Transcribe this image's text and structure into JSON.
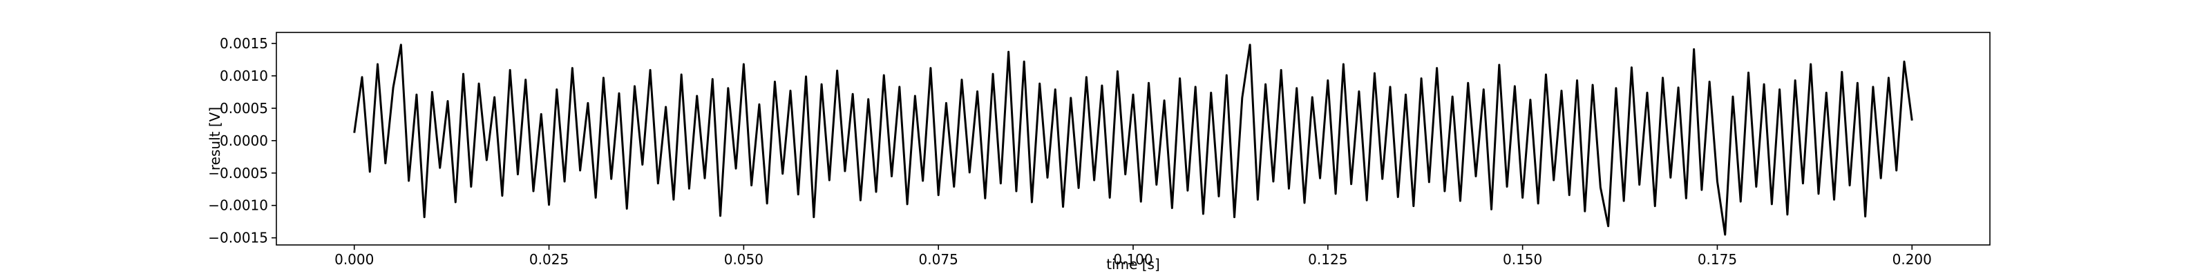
{
  "chart_data": {
    "type": "line",
    "x_label": "time [s]",
    "y_label": "result [V]",
    "color": "#000000",
    "xlim": [
      -0.01,
      0.21
    ],
    "ylim": [
      -0.00161,
      0.00167
    ],
    "xticks": [
      {
        "value": 0,
        "label": "0.000"
      },
      {
        "value": 0.025,
        "label": "0.025"
      },
      {
        "value": 0.05,
        "label": "0.050"
      },
      {
        "value": 0.075,
        "label": "0.075"
      },
      {
        "value": 0.1,
        "label": "0.100"
      },
      {
        "value": 0.125,
        "label": "0.125"
      },
      {
        "value": 0.15,
        "label": "0.150"
      },
      {
        "value": 0.175,
        "label": "0.175"
      },
      {
        "value": 0.2,
        "label": "0.200"
      }
    ],
    "yticks": [
      {
        "value": -0.0015,
        "label": "−0.0015"
      },
      {
        "value": -0.001,
        "label": "−0.0010"
      },
      {
        "value": -0.0005,
        "label": "−0.0005"
      },
      {
        "value": 0,
        "label": "0.0000"
      },
      {
        "value": 0.0005,
        "label": "0.0005"
      },
      {
        "value": 0.001,
        "label": "0.0010"
      },
      0.0015
    ],
    "x": [
      0,
      0.001,
      0.002,
      0.003,
      0.004,
      0.005,
      0.006,
      0.007,
      0.008,
      0.009,
      0.01,
      0.011,
      0.012,
      0.013,
      0.014,
      0.015,
      0.016,
      0.017,
      0.018,
      0.019,
      0.02,
      0.021,
      0.022,
      0.023,
      0.024,
      0.025,
      0.026,
      0.027,
      0.028,
      0.029,
      0.03,
      0.031,
      0.032,
      0.033,
      0.034,
      0.035,
      0.036,
      0.037,
      0.038,
      0.039,
      0.04,
      0.041,
      0.042,
      0.043,
      0.044,
      0.045,
      0.046,
      0.047,
      0.048,
      0.049,
      0.05,
      0.051,
      0.052,
      0.053,
      0.054,
      0.055,
      0.056,
      0.057,
      0.058,
      0.059,
      0.06,
      0.061,
      0.062,
      0.063,
      0.064,
      0.065,
      0.066,
      0.067,
      0.068,
      0.069,
      0.07,
      0.071,
      0.072,
      0.073,
      0.074,
      0.075,
      0.076,
      0.077,
      0.078,
      0.079,
      0.08,
      0.081,
      0.082,
      0.083,
      0.084,
      0.085,
      0.086,
      0.087,
      0.088,
      0.089,
      0.09,
      0.091,
      0.092,
      0.093,
      0.094,
      0.095,
      0.096,
      0.097,
      0.098,
      0.099,
      0.1,
      0.101,
      0.102,
      0.103,
      0.104,
      0.105,
      0.106,
      0.107,
      0.108,
      0.109,
      0.11,
      0.111,
      0.112,
      0.113,
      0.114,
      0.115,
      0.116,
      0.117,
      0.118,
      0.119,
      0.12,
      0.121,
      0.122,
      0.123,
      0.124,
      0.125,
      0.126,
      0.127,
      0.128,
      0.129,
      0.13,
      0.131,
      0.132,
      0.133,
      0.134,
      0.135,
      0.136,
      0.137,
      0.138,
      0.139,
      0.14,
      0.141,
      0.142,
      0.143,
      0.144,
      0.145,
      0.146,
      0.147,
      0.148,
      0.149,
      0.15,
      0.151,
      0.152,
      0.153,
      0.154,
      0.155,
      0.156,
      0.157,
      0.158,
      0.159,
      0.16,
      0.161,
      0.162,
      0.163,
      0.164,
      0.165,
      0.166,
      0.167,
      0.168,
      0.169,
      0.17,
      0.171,
      0.172,
      0.173,
      0.174,
      0.175,
      0.176,
      0.177,
      0.178,
      0.179,
      0.18,
      0.181,
      0.182,
      0.183,
      0.184,
      0.185,
      0.186,
      0.187,
      0.188,
      0.189,
      0.19,
      0.191,
      0.192,
      0.193,
      0.194,
      0.195,
      0.196,
      0.197,
      0.198,
      0.199,
      0.2
    ],
    "values": [
      0.00012,
      0.00098,
      -0.00048,
      0.00118,
      -0.00035,
      0.00082,
      0.00148,
      -0.00062,
      0.00071,
      -0.00118,
      0.00075,
      -0.00042,
      0.00061,
      -0.00095,
      0.00103,
      -0.00071,
      0.00088,
      -0.0003,
      0.00067,
      -0.00085,
      0.00109,
      -0.00052,
      0.00094,
      -0.00078,
      0.00041,
      -0.00099,
      0.00079,
      -0.00063,
      0.00112,
      -0.00046,
      0.00058,
      -0.00088,
      0.00097,
      -0.00059,
      0.00073,
      -0.00105,
      0.00084,
      -0.00037,
      0.00109,
      -0.00066,
      0.00052,
      -0.00091,
      0.00102,
      -0.00074,
      0.00069,
      -0.00058,
      0.00095,
      -0.00116,
      0.00081,
      -0.00043,
      0.00118,
      -0.00069,
      0.00056,
      -0.00097,
      0.00091,
      -0.00051,
      0.00077,
      -0.00083,
      0.00099,
      -0.00118,
      0.00087,
      -0.00061,
      0.00108,
      -0.00047,
      0.00072,
      -0.00092,
      0.00064,
      -0.00079,
      0.00101,
      -0.00055,
      0.00083,
      -0.00098,
      0.00069,
      -0.00062,
      0.00112,
      -0.00084,
      0.00058,
      -0.00071,
      0.00094,
      -0.00049,
      0.00076,
      -0.00089,
      0.00103,
      -0.00066,
      0.00137,
      -0.00078,
      0.00122,
      -0.00095,
      0.00088,
      -0.00057,
      0.00079,
      -0.00102,
      0.00066,
      -0.00073,
      0.00098,
      -0.00061,
      0.00085,
      -0.00088,
      0.00107,
      -0.00052,
      0.00071,
      -0.00094,
      0.00089,
      -0.00068,
      0.00062,
      -0.00104,
      0.00096,
      -0.00077,
      0.00083,
      -0.00113,
      0.00074,
      -0.00086,
      0.00101,
      -0.00118,
      0.00066,
      0.00148,
      -0.00091,
      0.00087,
      -0.00063,
      0.00109,
      -0.00074,
      0.00081,
      -0.00096,
      0.00067,
      -0.00058,
      0.00093,
      -0.00082,
      0.00118,
      -0.00067,
      0.00076,
      -0.00092,
      0.00104,
      -0.00059,
      0.00083,
      -0.00087,
      0.00071,
      -0.00101,
      0.00096,
      -0.00064,
      0.00112,
      -0.00078,
      0.00068,
      -0.00093,
      0.00089,
      -0.00055,
      0.00079,
      -0.00106,
      0.00117,
      -0.00071,
      0.00084,
      -0.00088,
      0.00063,
      -0.00097,
      0.00102,
      -0.00061,
      0.00077,
      -0.00084,
      0.00093,
      -0.00109,
      0.00086,
      -0.00072,
      -0.00132,
      0.00081,
      -0.00093,
      0.00113,
      -0.00068,
      0.00074,
      -0.00101,
      0.00097,
      -0.00057,
      0.00082,
      -0.00089,
      0.00141,
      -0.00076,
      0.00091,
      -0.00063,
      -0.00145,
      0.00068,
      -0.00094,
      0.00105,
      -0.00071,
      0.00087,
      -0.00098,
      0.00079,
      -0.00114,
      0.00093,
      -0.00066,
      0.00118,
      -0.00082,
      0.00074,
      -0.00091,
      0.00106,
      -0.00069,
      0.00089,
      -0.00117,
      0.00083,
      -0.00058,
      0.00097,
      -0.00046,
      0.00122,
      0.00031
    ]
  }
}
